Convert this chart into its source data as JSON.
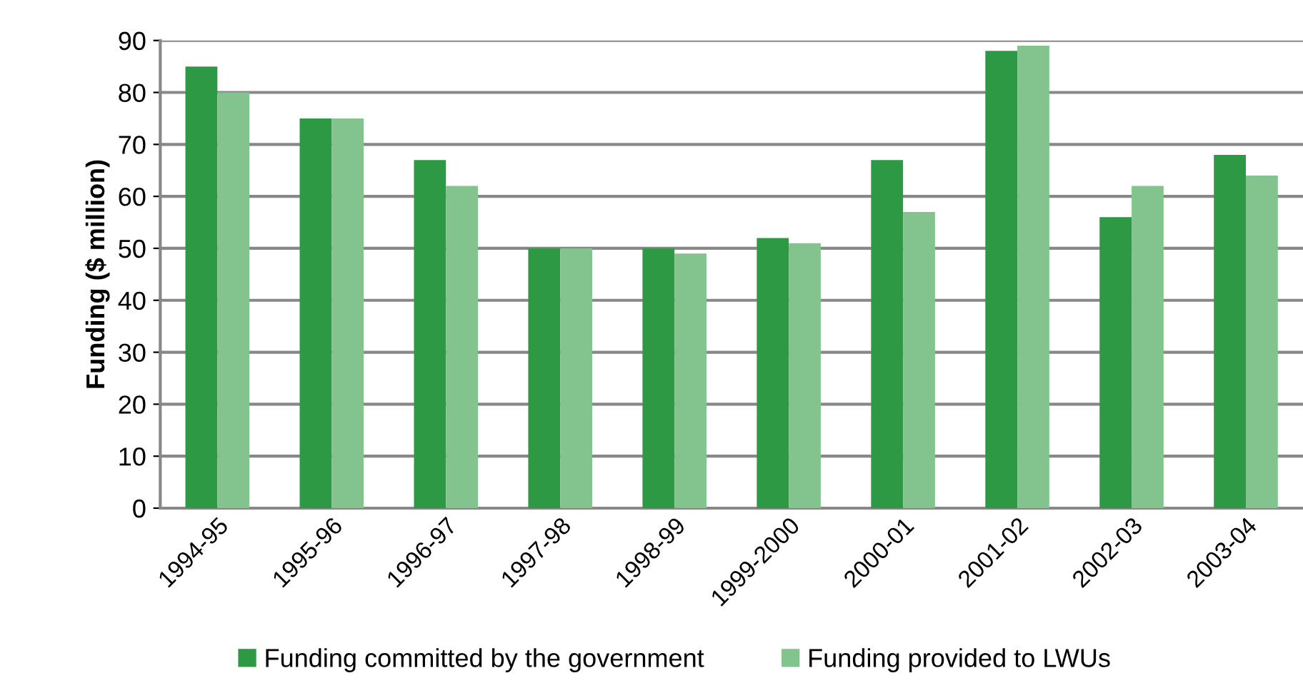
{
  "chart_data": {
    "type": "bar",
    "ylabel": "Funding ($ million)",
    "categories": [
      "1994-95",
      "1995-96",
      "1996-97",
      "1997-98",
      "1998-99",
      "1999-2000",
      "2000-01",
      "2001-02",
      "2002-03",
      "2003-04"
    ],
    "series": [
      {
        "name": "Funding committed by the government",
        "color": "#2e9944",
        "values": [
          85,
          75,
          67,
          50,
          50,
          52,
          67,
          88,
          56,
          68
        ]
      },
      {
        "name": "Funding provided to LWUs",
        "color": "#83c48e",
        "values": [
          80,
          75,
          62,
          50,
          49,
          51,
          57,
          89,
          62,
          64
        ]
      }
    ],
    "ylim": [
      0,
      90
    ],
    "yticks": [
      0,
      10,
      20,
      30,
      40,
      50,
      60,
      70,
      80,
      90
    ],
    "grid": "y",
    "legend": "bottom"
  }
}
